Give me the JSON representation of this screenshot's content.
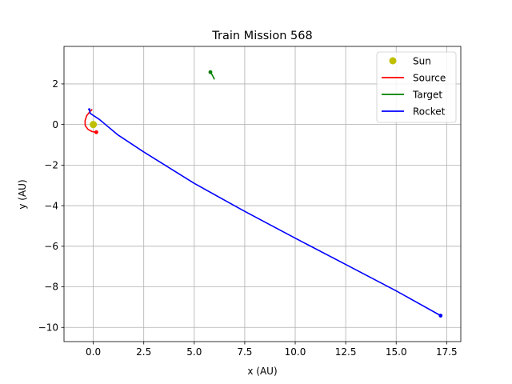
{
  "chart_data": {
    "type": "line",
    "title": "Train Mission 568",
    "xlabel": "x (AU)",
    "ylabel": "y (AU)",
    "xlim": [
      -1.45,
      18.2
    ],
    "ylim": [
      -10.7,
      3.85
    ],
    "xticks": [
      0.0,
      2.5,
      5.0,
      7.5,
      10.0,
      12.5,
      15.0,
      17.5
    ],
    "xtick_labels": [
      "0.0",
      "2.5",
      "5.0",
      "7.5",
      "10.0",
      "12.5",
      "15.0",
      "17.5"
    ],
    "yticks": [
      2,
      0,
      -2,
      -4,
      -6,
      -8,
      -10
    ],
    "ytick_labels": [
      "2",
      "0",
      "−2",
      "−4",
      "−6",
      "−8",
      "−10"
    ],
    "grid": true,
    "legend": "top-right",
    "series": [
      {
        "name": "Sun",
        "kind": "point",
        "color": "#bfbf00",
        "points": [
          [
            0.0,
            0.0
          ]
        ]
      },
      {
        "name": "Source",
        "kind": "line",
        "color": "#ff0000",
        "points": [
          [
            0.15,
            -0.38
          ],
          [
            -0.06,
            -0.35
          ],
          [
            -0.26,
            -0.24
          ],
          [
            -0.4,
            -0.05
          ],
          [
            -0.41,
            0.18
          ],
          [
            -0.33,
            0.43
          ],
          [
            -0.18,
            0.62
          ],
          [
            -0.05,
            0.75
          ]
        ],
        "end_marker": [
          0.15,
          -0.38
        ]
      },
      {
        "name": "Target",
        "kind": "line",
        "color": "#008000",
        "points": [
          [
            5.8,
            2.58
          ],
          [
            5.9,
            2.43
          ],
          [
            6.0,
            2.22
          ]
        ],
        "end_marker": [
          5.8,
          2.58
        ]
      },
      {
        "name": "Rocket",
        "kind": "line",
        "color": "#0000ff",
        "points": [
          [
            -0.2,
            0.75
          ],
          [
            -0.15,
            0.55
          ],
          [
            0.3,
            0.25
          ],
          [
            1.2,
            -0.5
          ],
          [
            2.5,
            -1.35
          ],
          [
            5.0,
            -2.9
          ],
          [
            7.5,
            -4.28
          ],
          [
            10.0,
            -5.6
          ],
          [
            12.5,
            -6.9
          ],
          [
            15.0,
            -8.2
          ],
          [
            17.2,
            -9.42
          ]
        ],
        "end_marker": [
          17.2,
          -9.42
        ],
        "start_marker": [
          -0.2,
          0.75
        ]
      }
    ]
  }
}
